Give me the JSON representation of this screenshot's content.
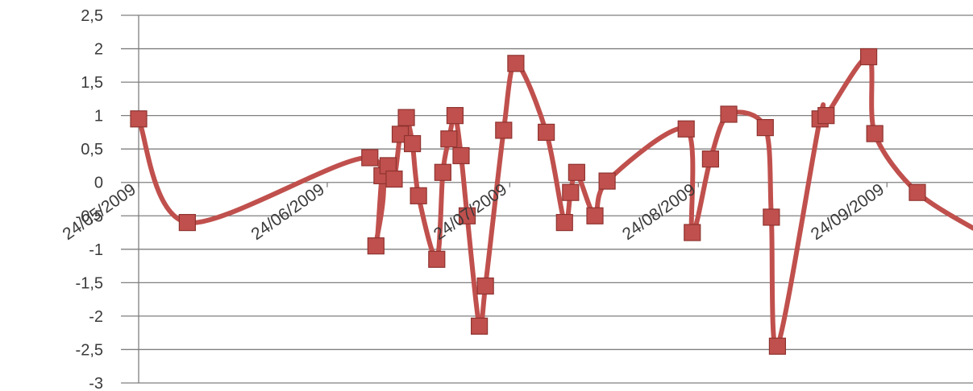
{
  "chart_data": {
    "type": "line",
    "title": "",
    "xlabel": "",
    "ylabel": "",
    "x_axis_type": "date",
    "xlim": [
      "2009-05-24",
      "2009-10-10"
    ],
    "ylim": [
      -3,
      2.5
    ],
    "y_ticks": [
      2.5,
      2,
      1.5,
      1,
      0.5,
      0,
      -0.5,
      -1,
      -1.5,
      -2,
      -2.5,
      -3
    ],
    "y_tick_labels": [
      "2,5",
      "2",
      "1,5",
      "1",
      "0,5",
      "0",
      "-0,5",
      "-1",
      "-1,5",
      "-2",
      "-2,5",
      "-3"
    ],
    "x_ticks": [
      "2009-05-24",
      "2009-06-24",
      "2009-07-24",
      "2009-08-24",
      "2009-09-24"
    ],
    "x_tick_labels": [
      "24/05/2009",
      "24/06/2009",
      "24/07/2009",
      "24/08/2009",
      "24/09/2009"
    ],
    "grid": "horizontal",
    "legend": "none",
    "line_color": "#c0504d",
    "marker_color": "#c0504d",
    "marker": "square",
    "smooth": true,
    "series": [
      {
        "points": [
          {
            "x": "2009-05-24",
            "y": 0.95
          },
          {
            "x": "2009-06-01",
            "y": -0.6
          },
          {
            "x": "2009-07-01",
            "y": 0.37
          },
          {
            "x": "2009-07-02",
            "y": -0.95
          },
          {
            "x": "2009-07-03",
            "y": 0.1
          },
          {
            "x": "2009-07-04",
            "y": 0.25
          },
          {
            "x": "2009-07-05",
            "y": 0.05
          },
          {
            "x": "2009-07-06",
            "y": 0.72
          },
          {
            "x": "2009-07-07",
            "y": 0.97
          },
          {
            "x": "2009-07-08",
            "y": 0.58
          },
          {
            "x": "2009-07-09",
            "y": -0.2
          },
          {
            "x": "2009-07-12",
            "y": -1.15
          },
          {
            "x": "2009-07-13",
            "y": 0.15
          },
          {
            "x": "2009-07-14",
            "y": 0.65
          },
          {
            "x": "2009-07-15",
            "y": 1.0
          },
          {
            "x": "2009-07-16",
            "y": 0.4
          },
          {
            "x": "2009-07-17",
            "y": -0.5
          },
          {
            "x": "2009-07-19",
            "y": -2.15
          },
          {
            "x": "2009-07-20",
            "y": -1.55
          },
          {
            "x": "2009-07-23",
            "y": 0.78
          },
          {
            "x": "2009-07-25",
            "y": 1.78
          },
          {
            "x": "2009-07-30",
            "y": 0.75
          },
          {
            "x": "2009-08-02",
            "y": -0.6
          },
          {
            "x": "2009-08-03",
            "y": -0.15
          },
          {
            "x": "2009-08-04",
            "y": 0.15
          },
          {
            "x": "2009-08-07",
            "y": -0.5
          },
          {
            "x": "2009-08-09",
            "y": 0.02
          },
          {
            "x": "2009-08-22",
            "y": 0.8
          },
          {
            "x": "2009-08-23",
            "y": -0.75
          },
          {
            "x": "2009-08-26",
            "y": 0.35
          },
          {
            "x": "2009-08-29",
            "y": 1.02
          },
          {
            "x": "2009-09-04",
            "y": 0.82
          },
          {
            "x": "2009-09-05",
            "y": -0.52
          },
          {
            "x": "2009-09-06",
            "y": -2.45
          },
          {
            "x": "2009-09-13",
            "y": 0.95
          },
          {
            "x": "2009-09-14",
            "y": 1.0
          },
          {
            "x": "2009-09-21",
            "y": 1.88
          },
          {
            "x": "2009-09-22",
            "y": 0.73
          },
          {
            "x": "2009-09-29",
            "y": -0.15
          },
          {
            "x": "2009-10-10",
            "y": -0.78
          }
        ]
      }
    ]
  }
}
